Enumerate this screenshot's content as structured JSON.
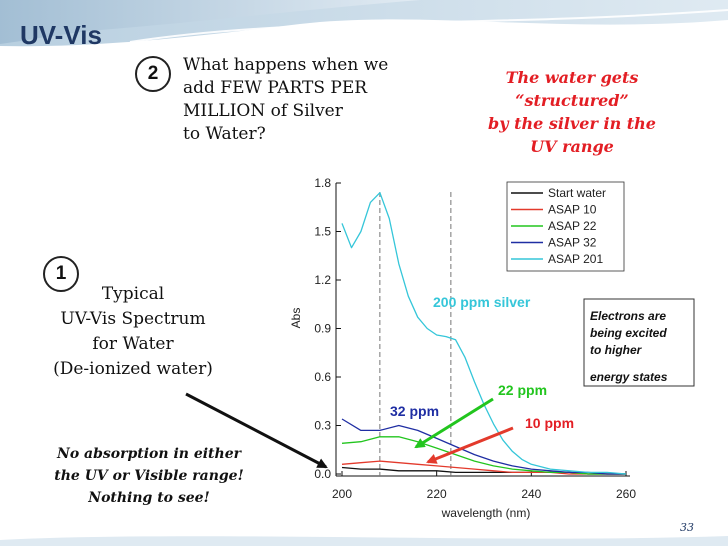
{
  "slide": {
    "heading": "UV-Vis",
    "step2_number": "2",
    "question_lines": [
      "What happens when we",
      "add  FEW PARTS PER",
      "MILLION of Silver",
      "to Water?"
    ],
    "water_note_lines": [
      "The water gets",
      "“structured”",
      "by the silver in the",
      "UV range"
    ],
    "step1_number": "1",
    "typical_lines": [
      "Typical",
      "UV-Vis Spectrum",
      "for Water",
      "(De-ionized water)"
    ],
    "no_absorption_lines": [
      "No absorption in either",
      "the UV or Visible range!",
      "Nothing to see!"
    ],
    "page_number": "33",
    "colors": {
      "heading": "#1f3864",
      "note_red": "#e31e24",
      "cyan": "#35c6d9",
      "green": "#22c51e",
      "blue": "#1f2ea3",
      "red": "#e33a2c",
      "black": "#111111"
    }
  },
  "chart_data": {
    "type": "line",
    "xlabel": "wavelength (nm)",
    "ylabel": "Abs",
    "xlim": [
      200,
      260
    ],
    "ylim": [
      0,
      1.8
    ],
    "xticks": [
      "200",
      "220",
      "240",
      "260"
    ],
    "yticks": [
      "0.0",
      "0.3",
      "0.6",
      "0.9",
      "1.2",
      "1.5",
      "1.8"
    ],
    "reference_lines_x": [
      208,
      223
    ],
    "series": [
      {
        "name": "Start water",
        "color": "#111111",
        "x": [
          200,
          204,
          208,
          212,
          216,
          220,
          224,
          228,
          232,
          236,
          240,
          244,
          248,
          252,
          256,
          260
        ],
        "y": [
          0.04,
          0.03,
          0.03,
          0.02,
          0.02,
          0.02,
          0.01,
          0.01,
          0.01,
          0.01,
          0.01,
          0.01,
          0.01,
          0.0,
          0.0,
          0.0
        ]
      },
      {
        "name": "ASAP 10",
        "color": "#e33a2c",
        "x": [
          200,
          204,
          208,
          212,
          216,
          220,
          224,
          228,
          232,
          236,
          240,
          244,
          248,
          252,
          256,
          260
        ],
        "y": [
          0.06,
          0.07,
          0.08,
          0.07,
          0.06,
          0.05,
          0.04,
          0.03,
          0.02,
          0.01,
          0.01,
          0.01,
          0.0,
          0.0,
          0.0,
          0.0
        ]
      },
      {
        "name": "ASAP 22",
        "color": "#22c51e",
        "x": [
          200,
          204,
          208,
          212,
          216,
          220,
          224,
          228,
          232,
          236,
          240,
          244,
          248,
          252,
          256,
          260
        ],
        "y": [
          0.19,
          0.2,
          0.23,
          0.23,
          0.2,
          0.16,
          0.12,
          0.08,
          0.05,
          0.03,
          0.02,
          0.01,
          0.01,
          0.0,
          0.0,
          0.0
        ]
      },
      {
        "name": "ASAP 32",
        "color": "#1f2ea3",
        "x": [
          200,
          204,
          208,
          212,
          216,
          220,
          224,
          228,
          232,
          236,
          240,
          244,
          248,
          252,
          256,
          260
        ],
        "y": [
          0.34,
          0.27,
          0.27,
          0.3,
          0.27,
          0.22,
          0.17,
          0.12,
          0.08,
          0.05,
          0.03,
          0.02,
          0.01,
          0.01,
          0.0,
          0.0
        ]
      },
      {
        "name": "ASAP 201",
        "color": "#35c6d9",
        "x": [
          200,
          202,
          204,
          206,
          208,
          210,
          212,
          214,
          216,
          218,
          220,
          222,
          224,
          226,
          228,
          230,
          232,
          234,
          236,
          238,
          240,
          244,
          248,
          252,
          256,
          260
        ],
        "y": [
          1.55,
          1.4,
          1.5,
          1.68,
          1.74,
          1.58,
          1.3,
          1.1,
          0.97,
          0.9,
          0.86,
          0.85,
          0.83,
          0.72,
          0.57,
          0.43,
          0.31,
          0.21,
          0.14,
          0.09,
          0.06,
          0.03,
          0.02,
          0.01,
          0.01,
          0.0
        ]
      }
    ],
    "legend_position": "top-right",
    "annotations": [
      {
        "text": "200 ppm silver",
        "color": "#35c6d9"
      },
      {
        "text": "32 ppm",
        "color": "#1f2ea3"
      },
      {
        "text": "22 ppm",
        "color": "#22c51e"
      },
      {
        "text": "10 ppm",
        "color": "#e31e24"
      }
    ],
    "callout_lines": [
      "Electrons are",
      "being excited",
      "to higher",
      "energy states"
    ]
  }
}
